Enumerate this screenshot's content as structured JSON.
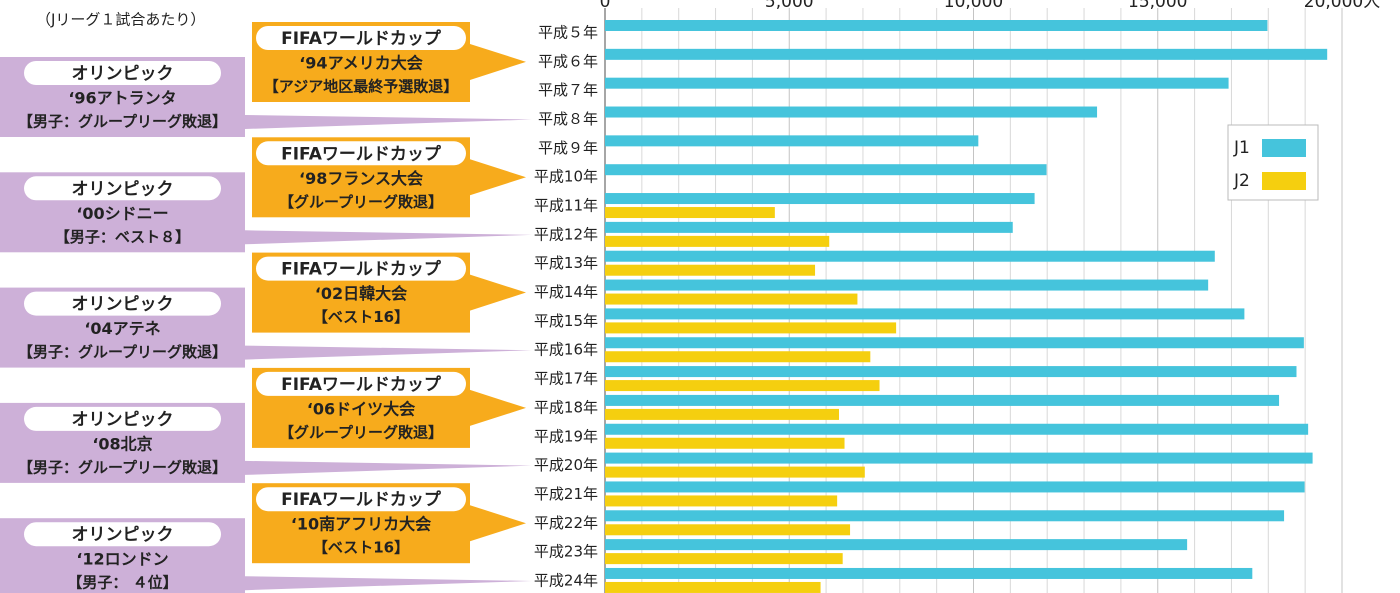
{
  "chart_data": {
    "type": "bar",
    "orientation": "horizontal",
    "subtitle": "（Jリーグ１試合あたり）",
    "categories": [
      "平成５年",
      "平成６年",
      "平成７年",
      "平成８年",
      "平成９年",
      "平成10年",
      "平成11年",
      "平成12年",
      "平成13年",
      "平成14年",
      "平成15年",
      "平成16年",
      "平成17年",
      "平成18年",
      "平成19年",
      "平成20年",
      "平成21年",
      "平成22年",
      "平成23年",
      "平成24年"
    ],
    "series": [
      {
        "name": "J1",
        "color": "#45c4dc",
        "values": [
          17976,
          19598,
          16922,
          13353,
          10131,
          11982,
          11658,
          11065,
          16548,
          16368,
          17351,
          18965,
          18765,
          18292,
          19081,
          19202,
          18985,
          18428,
          15797,
          17566
        ]
      },
      {
        "name": "J2",
        "color": "#f5cf0f",
        "values": [
          null,
          null,
          null,
          null,
          null,
          null,
          4609,
          6085,
          5700,
          6850,
          7900,
          7200,
          7450,
          6350,
          6500,
          7050,
          6300,
          6650,
          6450,
          5850
        ]
      }
    ],
    "xlim": [
      0,
      20000
    ],
    "xticks": [
      0,
      {
        "value": 5000,
        "label": "5,000"
      },
      {
        "value": 10000,
        "label": "10,000"
      },
      {
        "value": 15000,
        "label": "15,000"
      },
      {
        "value": 20000,
        "label": "20,000人"
      }
    ],
    "minor_xticks": [
      1000,
      2000,
      3000,
      4000,
      6000,
      7000,
      8000,
      9000,
      11000,
      12000,
      13000,
      14000,
      16000,
      17000,
      18000,
      19000
    ],
    "grid": true,
    "legend": "upper right",
    "annotations": {
      "fifa": [
        {
          "header": "FIFAワールドカップ",
          "lines": [
            "‘94アメリカ大会",
            "【アジア地区最終予選敗退】"
          ]
        },
        {
          "header": "FIFAワールドカップ",
          "lines": [
            "‘98フランス大会",
            "【グループリーグ敗退】"
          ]
        },
        {
          "header": "FIFAワールドカップ",
          "lines": [
            "‘02日韓大会",
            "【ベスト16】"
          ]
        },
        {
          "header": "FIFAワールドカップ",
          "lines": [
            "‘06ドイツ大会",
            "【グループリーグ敗退】"
          ]
        },
        {
          "header": "FIFAワールドカップ",
          "lines": [
            "‘10南アフリカ大会",
            "【ベスト16】"
          ]
        }
      ],
      "olympic": [
        {
          "header": "オリンピック",
          "lines": [
            "‘96アトランタ",
            "【男子：グループリーグ敗退】"
          ]
        },
        {
          "header": "オリンピック",
          "lines": [
            "‘00シドニー",
            "【男子：ベスト８】"
          ]
        },
        {
          "header": "オリンピック",
          "lines": [
            "‘04アテネ",
            "【男子：グループリーグ敗退】"
          ]
        },
        {
          "header": "オリンピック",
          "lines": [
            "‘08北京",
            "【男子：グループリーグ敗退】"
          ]
        },
        {
          "header": "オリンピック",
          "lines": [
            "‘12ロンドン",
            "【男子： ４位】"
          ]
        }
      ]
    }
  }
}
